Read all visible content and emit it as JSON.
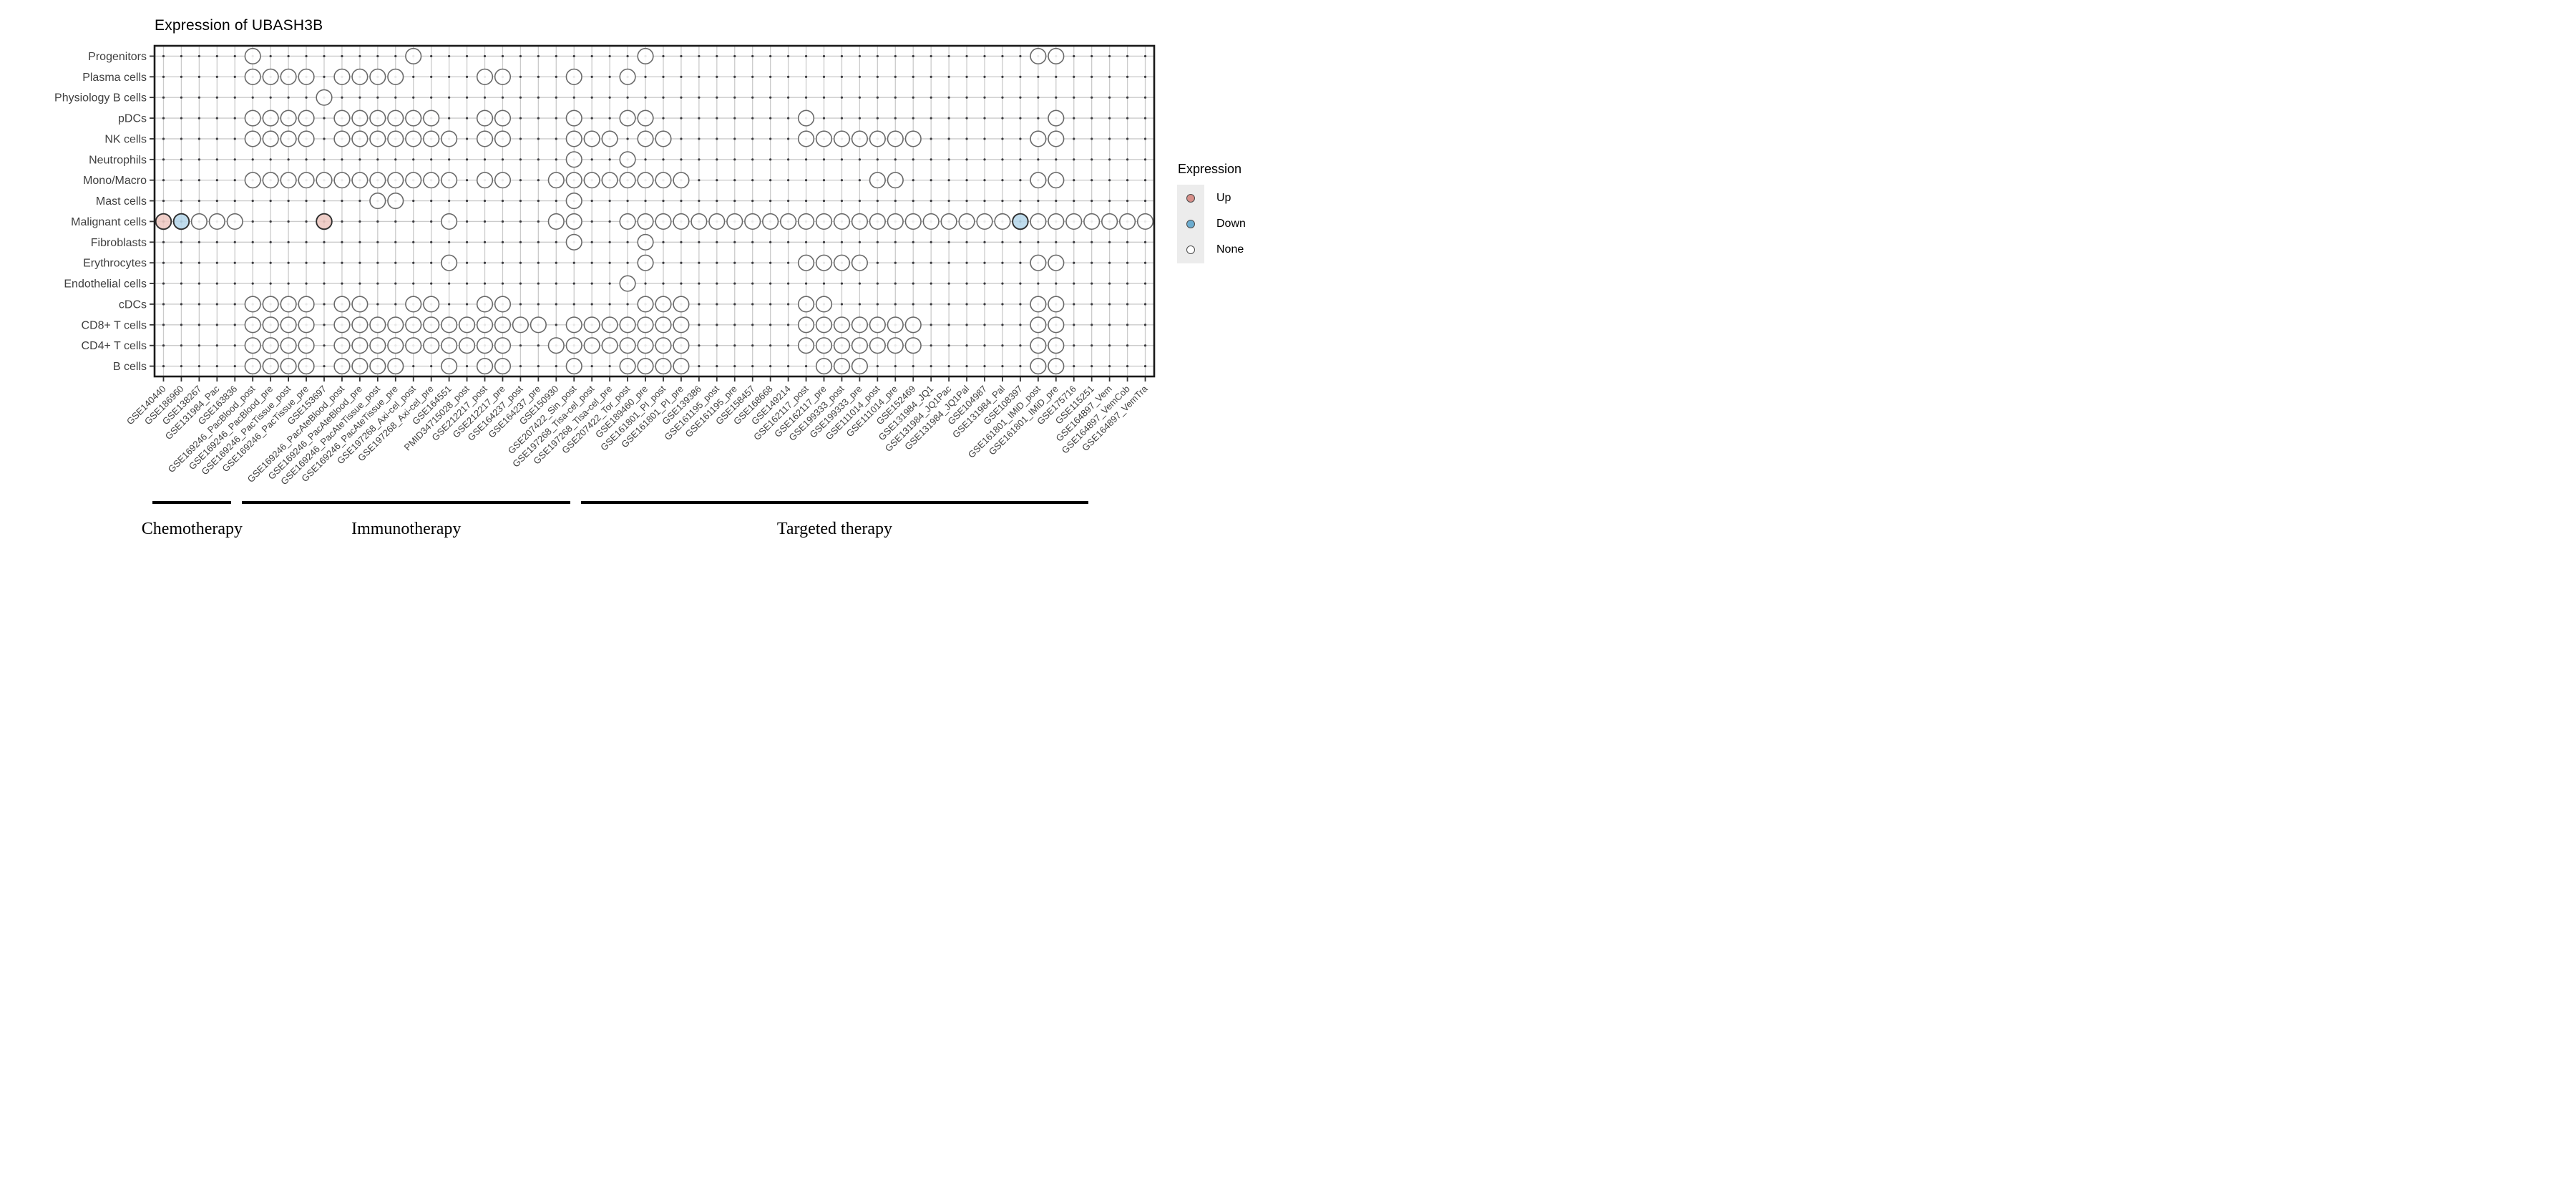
{
  "chart_data": {
    "type": "heatmap",
    "title": "Expression of UBASH3B",
    "legend": {
      "title": "Expression",
      "entries": [
        {
          "label": "Up",
          "value": "up"
        },
        {
          "label": "Down",
          "value": "down"
        },
        {
          "label": "None",
          "value": "none"
        }
      ]
    },
    "colors": {
      "dot_up_fill": "#eec8c2",
      "dot_down_fill": "#b6d7ea",
      "dot_none_fill": "#ffffff",
      "dot_open_stroke": "#6a6a6a",
      "dot_filled_stroke": "#2f2f2f",
      "legend_up_fill": "#d78f89",
      "legend_down_fill": "#6caccf",
      "grid_line": "#cbcbcb",
      "grid_dot": "#3a3a3e",
      "axis_border": "#1a1a1a",
      "tick_label": "#3f3f3f"
    },
    "x_categories": [
      "GSE140440",
      "GSE186960",
      "GSE138267",
      "GSE131984_Pac",
      "GSE163836",
      "GSE169246_PacBlood_post",
      "GSE169246_PacBlood_pre",
      "GSE169246_PacTissue_post",
      "GSE169246_PacTissue_pre",
      "GSE153697",
      "GSE169246_PacAteBlood_post",
      "GSE169246_PacAteBlood_pre",
      "GSE169246_PacAteTissue_post",
      "GSE169246_PacAteTissue_pre",
      "GSE197268_Axi-cel_post",
      "GSE197268_Axi-cel_pre",
      "GSE164551",
      "PMID34715028_post",
      "GSE212217_post",
      "GSE212217_pre",
      "GSE164237_post",
      "GSE164237_pre",
      "GSE150930",
      "GSE207422_Sin_post",
      "GSE197268_Tisa-cel_post",
      "GSE197268_Tisa-cel_pre",
      "GSE207422_Tor_post",
      "GSE189460_pre",
      "GSE161801_PI_post",
      "GSE161801_PI_pre",
      "GSE139386",
      "GSE161195_post",
      "GSE161195_pre",
      "GSE158457",
      "GSE168668",
      "GSE149214",
      "GSE162117_post",
      "GSE162117_pre",
      "GSE199333_post",
      "GSE199333_pre",
      "GSE111014_post",
      "GSE111014_pre",
      "GSE152469",
      "GSE131984_JQ1",
      "GSE131984_JQ1Pac",
      "GSE131984_JQ1Pal",
      "GSE104987",
      "GSE131984_Pal",
      "GSE108397",
      "GSE161801_IMiD_post",
      "GSE161801_IMiD_pre",
      "GSE175716",
      "GSE115251",
      "GSE164897_Vem",
      "GSE164897_VemCob",
      "GSE164897_VemTra"
    ],
    "y_categories": [
      "Progenitors",
      "Plasma cells",
      "Physiology B cells",
      "pDCs",
      "NK cells",
      "Neutrophils",
      "Mono/Macro",
      "Mast cells",
      "Malignant cells",
      "Fibroblasts",
      "Erythrocytes",
      "Endothelial cells",
      "cDCs",
      "CD8+ T cells",
      "CD4+ T cells",
      "B cells"
    ],
    "rows": [
      {
        "label": "Progenitors",
        "none": [
          6,
          15,
          28,
          50,
          51
        ],
        "up": [],
        "down": []
      },
      {
        "label": "Plasma cells",
        "none": [
          6,
          7,
          8,
          9,
          11,
          12,
          13,
          14,
          19,
          20,
          24,
          27
        ],
        "up": [],
        "down": []
      },
      {
        "label": "Physiology B cells",
        "none": [
          10
        ],
        "up": [],
        "down": []
      },
      {
        "label": "pDCs",
        "none": [
          6,
          7,
          8,
          9,
          11,
          12,
          13,
          14,
          15,
          16,
          19,
          20,
          24,
          27,
          28,
          37,
          51
        ],
        "up": [],
        "down": []
      },
      {
        "label": "NK cells",
        "none": [
          6,
          7,
          8,
          9,
          11,
          12,
          13,
          14,
          15,
          16,
          17,
          19,
          20,
          24,
          25,
          26,
          28,
          29,
          37,
          38,
          39,
          40,
          41,
          42,
          43,
          50,
          51
        ],
        "up": [],
        "down": []
      },
      {
        "label": "Neutrophils",
        "none": [
          24,
          27
        ],
        "up": [],
        "down": []
      },
      {
        "label": "Mono/Macro",
        "none": [
          6,
          7,
          8,
          9,
          10,
          11,
          12,
          13,
          14,
          15,
          16,
          17,
          19,
          20,
          23,
          24,
          25,
          26,
          27,
          28,
          29,
          30,
          41,
          42,
          50,
          51
        ],
        "up": [],
        "down": []
      },
      {
        "label": "Mast cells",
        "none": [
          13,
          14,
          24
        ],
        "up": [],
        "down": []
      },
      {
        "label": "Malignant cells",
        "none": [
          3,
          4,
          5,
          17,
          23,
          24,
          27,
          28,
          29,
          30,
          31,
          32,
          33,
          34,
          35,
          36,
          37,
          38,
          39,
          40,
          41,
          42,
          43,
          44,
          45,
          46,
          47,
          48,
          50,
          51,
          52,
          53,
          54,
          55,
          56
        ],
        "up": [
          1,
          10
        ],
        "down": [
          2,
          49
        ]
      },
      {
        "label": "Fibroblasts",
        "none": [
          24,
          28
        ],
        "up": [],
        "down": []
      },
      {
        "label": "Erythrocytes",
        "none": [
          17,
          28,
          37,
          38,
          39,
          40,
          50,
          51
        ],
        "up": [],
        "down": []
      },
      {
        "label": "Endothelial cells",
        "none": [
          27
        ],
        "up": [],
        "down": []
      },
      {
        "label": "cDCs",
        "none": [
          6,
          7,
          8,
          9,
          11,
          12,
          15,
          16,
          19,
          20,
          28,
          29,
          30,
          37,
          38,
          50,
          51
        ],
        "up": [],
        "down": []
      },
      {
        "label": "CD8+ T cells",
        "none": [
          6,
          7,
          8,
          9,
          11,
          12,
          13,
          14,
          15,
          16,
          17,
          18,
          19,
          20,
          21,
          22,
          24,
          25,
          26,
          27,
          28,
          29,
          30,
          37,
          38,
          39,
          40,
          41,
          42,
          43,
          50,
          51
        ],
        "up": [],
        "down": []
      },
      {
        "label": "CD4+ T cells",
        "none": [
          6,
          7,
          8,
          9,
          11,
          12,
          13,
          14,
          15,
          16,
          17,
          18,
          19,
          20,
          23,
          24,
          25,
          26,
          27,
          28,
          29,
          30,
          37,
          38,
          39,
          40,
          41,
          42,
          43,
          50,
          51
        ],
        "up": [],
        "down": []
      },
      {
        "label": "B cells",
        "none": [
          6,
          7,
          8,
          9,
          11,
          12,
          13,
          14,
          17,
          19,
          20,
          24,
          27,
          28,
          29,
          30,
          38,
          39,
          40,
          50,
          51
        ],
        "up": [],
        "down": []
      }
    ],
    "therapy_groups": [
      {
        "label": "Chemotherapy",
        "col_start": 1,
        "col_end": 5
      },
      {
        "label": "Immunotherapy",
        "col_start": 6,
        "col_end": 24
      },
      {
        "label": "Targeted therapy",
        "col_start": 25,
        "col_end": 53
      }
    ],
    "layout_hints": {
      "grid": true,
      "legend_position": "right",
      "x_tick_angle": 45
    }
  }
}
